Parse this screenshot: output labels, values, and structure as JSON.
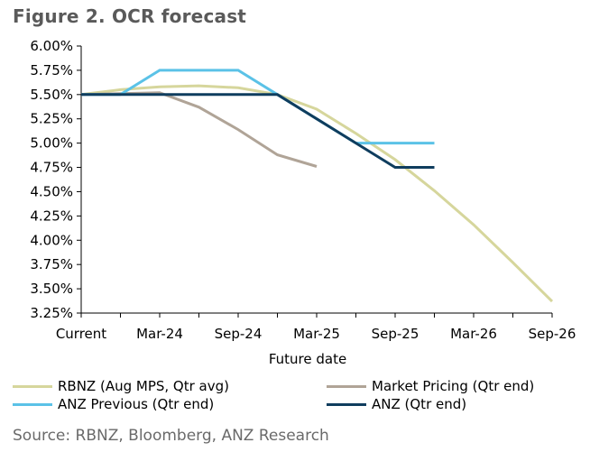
{
  "title": "Figure 2. OCR forecast",
  "source": "Source: RBNZ, Bloomberg, ANZ Research",
  "chart_data": {
    "type": "line",
    "title": "Figure 2. OCR forecast",
    "xlabel": "Future date",
    "ylabel": "",
    "ylim": [
      3.25,
      6.0
    ],
    "y_ticks": [
      "3.25%",
      "3.50%",
      "3.75%",
      "4.00%",
      "4.25%",
      "4.50%",
      "4.75%",
      "5.00%",
      "5.25%",
      "5.50%",
      "5.75%",
      "6.00%"
    ],
    "y_tick_values": [
      3.25,
      3.5,
      3.75,
      4.0,
      4.25,
      4.5,
      4.75,
      5.0,
      5.25,
      5.5,
      5.75,
      6.0
    ],
    "x_ticks": [
      "Current",
      "Mar-24",
      "Sep-24",
      "Mar-25",
      "Sep-25",
      "Mar-26",
      "Sep-26"
    ],
    "x_range": [
      0,
      12
    ],
    "grid": false,
    "legend_position": "bottom",
    "series": [
      {
        "name": "RBNZ (Aug MPS, Qtr avg)",
        "color": "#d6d69c",
        "x": [
          0,
          1,
          2,
          3,
          4,
          5,
          6,
          7,
          8,
          9,
          10,
          11,
          12
        ],
        "values": [
          5.5,
          5.55,
          5.58,
          5.59,
          5.57,
          5.5,
          5.35,
          5.1,
          4.83,
          4.51,
          4.16,
          3.77,
          3.37
        ]
      },
      {
        "name": "Market Pricing (Qtr end)",
        "color": "#b0a497",
        "x": [
          0,
          1,
          2,
          3,
          4,
          5,
          6
        ],
        "values": [
          5.5,
          5.51,
          5.52,
          5.37,
          5.14,
          4.88,
          4.76
        ]
      },
      {
        "name": "ANZ Previous (Qtr end)",
        "color": "#5bc2e7",
        "x": [
          0,
          1,
          2,
          3,
          4,
          5,
          6,
          7,
          8,
          9
        ],
        "values": [
          5.5,
          5.5,
          5.75,
          5.75,
          5.75,
          5.5,
          5.25,
          5.0,
          5.0,
          5.0
        ]
      },
      {
        "name": "ANZ (Qtr end)",
        "color": "#0f3d5e",
        "x": [
          0,
          1,
          2,
          3,
          4,
          5,
          6,
          7,
          8,
          9
        ],
        "values": [
          5.5,
          5.5,
          5.5,
          5.5,
          5.5,
          5.5,
          5.25,
          5.0,
          4.75,
          4.75
        ]
      }
    ]
  }
}
